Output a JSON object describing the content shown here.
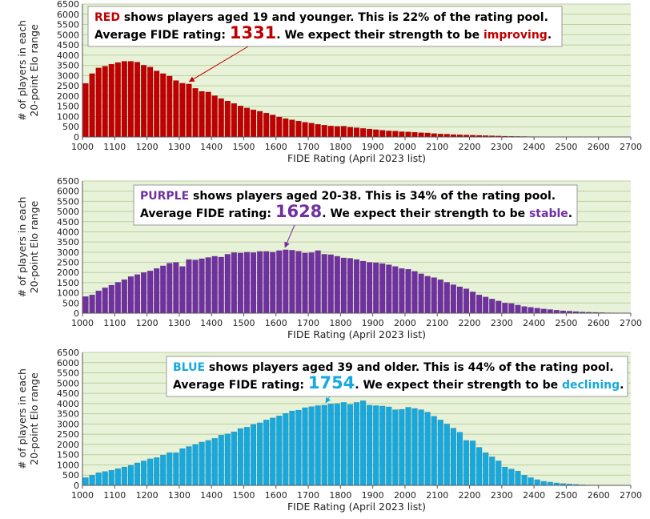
{
  "chart_data": [
    {
      "type": "bar",
      "bin_width": 20,
      "x": [
        1000,
        1020,
        1040,
        1060,
        1080,
        1100,
        1120,
        1140,
        1160,
        1180,
        1200,
        1220,
        1240,
        1260,
        1280,
        1300,
        1320,
        1340,
        1360,
        1380,
        1400,
        1420,
        1440,
        1460,
        1480,
        1500,
        1520,
        1540,
        1560,
        1580,
        1600,
        1620,
        1640,
        1660,
        1680,
        1700,
        1720,
        1740,
        1760,
        1780,
        1800,
        1820,
        1840,
        1860,
        1880,
        1900,
        1920,
        1940,
        1960,
        1980,
        2000,
        2020,
        2040,
        2060,
        2080,
        2100,
        2120,
        2140,
        2160,
        2180,
        2200,
        2220,
        2240,
        2260,
        2280,
        2300,
        2320,
        2340,
        2360,
        2380,
        2400,
        2420,
        2440,
        2460,
        2480,
        2500,
        2520,
        2540,
        2560,
        2580,
        2600,
        2620,
        2640,
        2660,
        2680
      ],
      "values": [
        2620,
        3100,
        3380,
        3460,
        3560,
        3640,
        3700,
        3700,
        3660,
        3510,
        3420,
        3230,
        3100,
        2980,
        2760,
        2630,
        2590,
        2380,
        2230,
        2200,
        2020,
        1880,
        1760,
        1640,
        1520,
        1420,
        1330,
        1260,
        1170,
        1080,
        980,
        900,
        840,
        780,
        720,
        680,
        620,
        580,
        540,
        520,
        530,
        480,
        450,
        420,
        390,
        360,
        330,
        300,
        290,
        260,
        250,
        230,
        210,
        200,
        170,
        150,
        140,
        120,
        110,
        100,
        90,
        80,
        70,
        60,
        50,
        40,
        35,
        30,
        25,
        20,
        15,
        12,
        10,
        8,
        6,
        5,
        4,
        3,
        2,
        2,
        1,
        1,
        1,
        1,
        1
      ],
      "color": "#c00000",
      "xlabel": "FIDE Rating (April 2023 list)",
      "ylabel": [
        "# of players in each",
        "20-point Elo range"
      ],
      "xlim": [
        1000,
        2700
      ],
      "ylim": [
        0,
        6500
      ],
      "xticks": [
        1000,
        1100,
        1200,
        1300,
        1400,
        1500,
        1600,
        1700,
        1800,
        1900,
        2000,
        2100,
        2200,
        2300,
        2400,
        2500,
        2600,
        2700
      ],
      "yticks": [
        0,
        500,
        1000,
        1500,
        2000,
        2500,
        3000,
        3500,
        4000,
        4500,
        5000,
        5500,
        6000,
        6500
      ],
      "annotation": {
        "line1": [
          {
            "text": "RED",
            "color": "#c00000"
          },
          {
            "text": " shows players aged 19 and younger. This is 22% of the rating pool.",
            "color": "#000000"
          }
        ],
        "line2": [
          {
            "text": "Average FIDE rating: ",
            "color": "#000000"
          },
          {
            "text": "1331",
            "color": "#c00000",
            "big": true
          },
          {
            "text": ".  We expect their strength to be ",
            "color": "#000000"
          },
          {
            "text": "improving",
            "color": "#c00000"
          },
          {
            "text": ".",
            "color": "#000000"
          }
        ],
        "arrow_to_x": 1331,
        "arrow_color": "#c00000"
      }
    },
    {
      "type": "bar",
      "bin_width": 20,
      "x": [
        1000,
        1020,
        1040,
        1060,
        1080,
        1100,
        1120,
        1140,
        1160,
        1180,
        1200,
        1220,
        1240,
        1260,
        1280,
        1300,
        1320,
        1340,
        1360,
        1380,
        1400,
        1420,
        1440,
        1460,
        1480,
        1500,
        1520,
        1540,
        1560,
        1580,
        1600,
        1620,
        1640,
        1660,
        1680,
        1700,
        1720,
        1740,
        1760,
        1780,
        1800,
        1820,
        1840,
        1860,
        1880,
        1900,
        1920,
        1940,
        1960,
        1980,
        2000,
        2020,
        2040,
        2060,
        2080,
        2100,
        2120,
        2140,
        2160,
        2180,
        2200,
        2220,
        2240,
        2260,
        2280,
        2300,
        2320,
        2340,
        2360,
        2380,
        2400,
        2420,
        2440,
        2460,
        2480,
        2500,
        2520,
        2540,
        2560,
        2580,
        2600,
        2620,
        2640,
        2660,
        2680
      ],
      "values": [
        820,
        900,
        1100,
        1250,
        1380,
        1520,
        1650,
        1800,
        1900,
        2000,
        2080,
        2200,
        2330,
        2460,
        2500,
        2300,
        2640,
        2620,
        2680,
        2740,
        2800,
        2760,
        2900,
        2980,
        2960,
        3000,
        2980,
        3040,
        3040,
        3000,
        3080,
        3120,
        3100,
        3050,
        2960,
        2980,
        3080,
        2900,
        2880,
        2800,
        2720,
        2700,
        2640,
        2560,
        2500,
        2480,
        2440,
        2380,
        2300,
        2200,
        2160,
        2060,
        1940,
        1820,
        1750,
        1650,
        1520,
        1400,
        1300,
        1200,
        1050,
        900,
        800,
        700,
        600,
        500,
        480,
        400,
        330,
        290,
        250,
        210,
        180,
        150,
        120,
        100,
        80,
        60,
        50,
        40,
        30,
        20,
        15,
        10,
        5
      ],
      "color": "#7030a0",
      "xlabel": "FIDE Rating (April 2023 list)",
      "ylabel": [
        "# of players in each",
        "20-point Elo range"
      ],
      "xlim": [
        1000,
        2700
      ],
      "ylim": [
        0,
        6500
      ],
      "xticks": [
        1000,
        1100,
        1200,
        1300,
        1400,
        1500,
        1600,
        1700,
        1800,
        1900,
        2000,
        2100,
        2200,
        2300,
        2400,
        2500,
        2600,
        2700
      ],
      "yticks": [
        0,
        500,
        1000,
        1500,
        2000,
        2500,
        3000,
        3500,
        4000,
        4500,
        5000,
        5500,
        6000,
        6500
      ],
      "annotation": {
        "line1": [
          {
            "text": "PURPLE",
            "color": "#7030a0"
          },
          {
            "text": " shows players aged 20-38. This is 34% of the rating pool.",
            "color": "#000000"
          }
        ],
        "line2": [
          {
            "text": "Average FIDE rating: ",
            "color": "#000000"
          },
          {
            "text": "1628",
            "color": "#7030a0",
            "big": true
          },
          {
            "text": ".  We expect their strength to be ",
            "color": "#000000"
          },
          {
            "text": "stable",
            "color": "#7030a0"
          },
          {
            "text": ".",
            "color": "#000000"
          }
        ],
        "arrow_to_x": 1628,
        "arrow_color": "#7030a0"
      }
    },
    {
      "type": "bar",
      "bin_width": 20,
      "x": [
        1000,
        1020,
        1040,
        1060,
        1080,
        1100,
        1120,
        1140,
        1160,
        1180,
        1200,
        1220,
        1240,
        1260,
        1280,
        1300,
        1320,
        1340,
        1360,
        1380,
        1400,
        1420,
        1440,
        1460,
        1480,
        1500,
        1520,
        1540,
        1560,
        1580,
        1600,
        1620,
        1640,
        1660,
        1680,
        1700,
        1720,
        1740,
        1760,
        1780,
        1800,
        1820,
        1840,
        1860,
        1880,
        1900,
        1920,
        1940,
        1960,
        1980,
        2000,
        2020,
        2040,
        2060,
        2080,
        2100,
        2120,
        2140,
        2160,
        2180,
        2200,
        2220,
        2240,
        2260,
        2280,
        2300,
        2320,
        2340,
        2360,
        2380,
        2400,
        2420,
        2440,
        2460,
        2480,
        2500,
        2520,
        2540,
        2560,
        2580,
        2600,
        2620,
        2640,
        2660,
        2680
      ],
      "values": [
        380,
        500,
        620,
        680,
        740,
        820,
        900,
        980,
        1100,
        1200,
        1300,
        1360,
        1480,
        1600,
        1600,
        1800,
        1900,
        2000,
        2120,
        2200,
        2300,
        2460,
        2520,
        2620,
        2780,
        2850,
        2980,
        3060,
        3200,
        3300,
        3400,
        3520,
        3640,
        3680,
        3800,
        3850,
        3900,
        3920,
        3980,
        4000,
        4060,
        3960,
        4060,
        4140,
        3920,
        3900,
        3880,
        3840,
        3700,
        3720,
        3820,
        3760,
        3700,
        3580,
        3380,
        3200,
        3000,
        2800,
        2600,
        2200,
        2180,
        1860,
        1600,
        1400,
        1200,
        900,
        800,
        700,
        500,
        380,
        280,
        200,
        160,
        120,
        90,
        70,
        50,
        30,
        20,
        15,
        10,
        8,
        5,
        4,
        3
      ],
      "color": "#17a8dd",
      "xlabel": "FIDE Rating (April 2023 list)",
      "ylabel": [
        "# of players in each",
        "20-point Elo range"
      ],
      "xlim": [
        1000,
        2700
      ],
      "ylim": [
        0,
        6500
      ],
      "xticks": [
        1000,
        1100,
        1200,
        1300,
        1400,
        1500,
        1600,
        1700,
        1800,
        1900,
        2000,
        2100,
        2200,
        2300,
        2400,
        2500,
        2600,
        2700
      ],
      "yticks": [
        0,
        500,
        1000,
        1500,
        2000,
        2500,
        3000,
        3500,
        4000,
        4500,
        5000,
        5500,
        6000,
        6500
      ],
      "annotation": {
        "line1": [
          {
            "text": "BLUE",
            "color": "#17a8dd"
          },
          {
            "text": " shows players aged 39 and older. This is 44% of the rating pool.",
            "color": "#000000"
          }
        ],
        "line2": [
          {
            "text": "Average FIDE rating: ",
            "color": "#000000"
          },
          {
            "text": "1754",
            "color": "#17a8dd",
            "big": true
          },
          {
            "text": ".  We expect their strength to be ",
            "color": "#000000"
          },
          {
            "text": "declining",
            "color": "#17a8dd"
          },
          {
            "text": ".",
            "color": "#000000"
          }
        ],
        "arrow_to_x": 1754,
        "arrow_color": "#17a8dd"
      }
    }
  ],
  "plot_background": "#e8f2d8",
  "gridline_color": "#b9cfa0"
}
